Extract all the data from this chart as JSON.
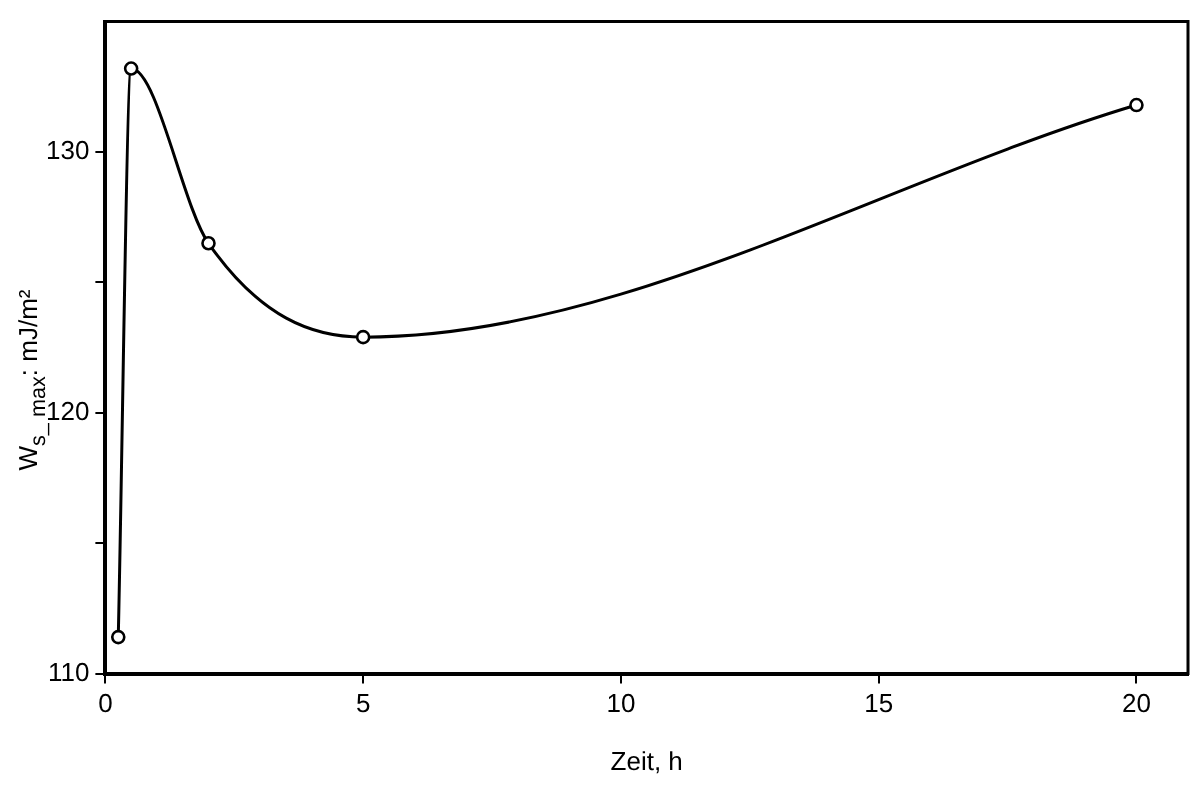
{
  "chart_data": {
    "type": "line",
    "xlabel": "Zeit, h",
    "ylabel": "W$_{s_ max}$: mJ/m²",
    "x": [
      0.25,
      0.5,
      2,
      5,
      20
    ],
    "series": [
      {
        "color": "#000000",
        "values": [
          111.4,
          133.2,
          126.5,
          122.9,
          131.8
        ]
      }
    ],
    "xlim": [
      0,
      21
    ],
    "xticks": [
      0,
      5,
      10,
      15,
      20
    ],
    "ylim": [
      110,
      135
    ],
    "yticks": [
      110,
      {
        "value": 115,
        "label": null
      },
      120,
      {
        "value": 125,
        "label": null
      },
      130
    ],
    "marker": "circle",
    "line_style": "solid",
    "legend": false
  }
}
